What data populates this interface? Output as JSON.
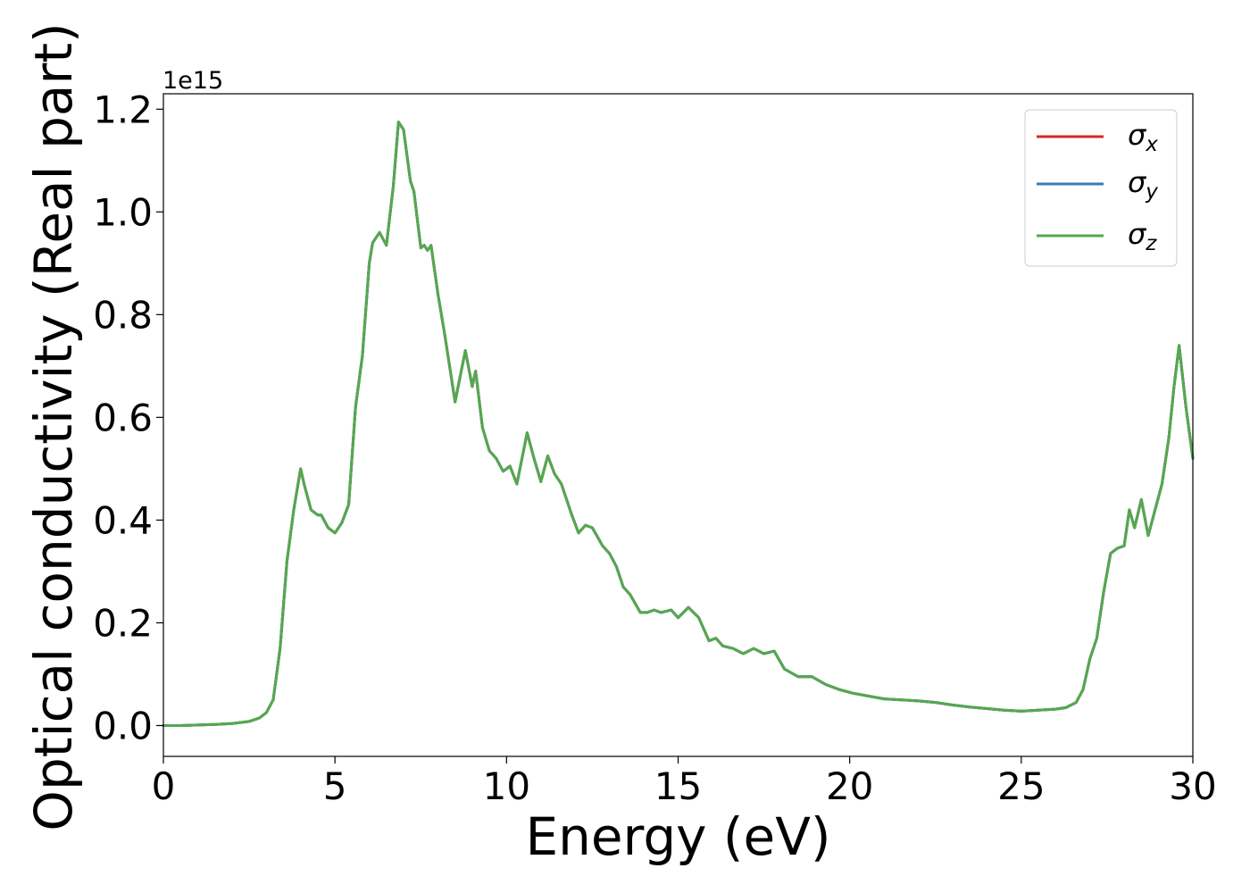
{
  "chart_data": {
    "type": "line",
    "xlabel": "Energy (eV)",
    "ylabel": "Optical conductivity (Real part)",
    "offset_text": "1e15",
    "xlim": [
      0,
      30
    ],
    "ylim": [
      -0.06,
      1.23
    ],
    "y_scale_factor": "1e15",
    "xticks": [
      0,
      5,
      10,
      15,
      20,
      25,
      30
    ],
    "xtick_labels": [
      "0",
      "5",
      "10",
      "15",
      "20",
      "25",
      "30"
    ],
    "yticks": [
      0.0,
      0.2,
      0.4,
      0.6,
      0.8,
      1.0,
      1.2
    ],
    "ytick_labels": [
      "0.0",
      "0.2",
      "0.4",
      "0.6",
      "0.8",
      "1.0",
      "1.2"
    ],
    "grid": false,
    "legend_position": "top-right",
    "series": [
      {
        "name": "σx",
        "label_base": "σ",
        "label_sub": "x",
        "color": "#d62728"
      },
      {
        "name": "σy",
        "label_base": "σ",
        "label_sub": "y",
        "color": "#3a7bb5"
      },
      {
        "name": "σz",
        "label_base": "σ",
        "label_sub": "z",
        "color": "#55a84f"
      }
    ],
    "x": [
      0,
      0.5,
      1,
      1.5,
      2,
      2.5,
      2.8,
      3.0,
      3.2,
      3.4,
      3.6,
      3.8,
      4.0,
      4.1,
      4.3,
      4.5,
      4.6,
      4.8,
      5.0,
      5.2,
      5.4,
      5.6,
      5.8,
      6.0,
      6.1,
      6.3,
      6.5,
      6.7,
      6.85,
      7.0,
      7.2,
      7.3,
      7.5,
      7.6,
      7.7,
      7.8,
      8.0,
      8.2,
      8.5,
      8.8,
      9.0,
      9.1,
      9.3,
      9.5,
      9.7,
      9.9,
      10.1,
      10.3,
      10.6,
      10.8,
      11.0,
      11.2,
      11.4,
      11.6,
      11.9,
      12.1,
      12.3,
      12.5,
      12.8,
      13.0,
      13.2,
      13.4,
      13.6,
      13.9,
      14.1,
      14.3,
      14.5,
      14.8,
      15.0,
      15.3,
      15.6,
      15.9,
      16.1,
      16.3,
      16.6,
      16.9,
      17.2,
      17.5,
      17.8,
      18.1,
      18.5,
      18.9,
      19.3,
      19.7,
      20.1,
      20.5,
      21.0,
      21.5,
      22.0,
      22.5,
      23.0,
      23.5,
      24.0,
      24.5,
      25.0,
      25.5,
      26.0,
      26.3,
      26.6,
      26.8,
      27.0,
      27.2,
      27.4,
      27.6,
      27.8,
      28.0,
      28.15,
      28.3,
      28.5,
      28.7,
      28.9,
      29.1,
      29.3,
      29.45,
      29.6,
      29.8,
      30.0
    ],
    "y": [
      0.0,
      0.0,
      0.001,
      0.002,
      0.004,
      0.008,
      0.015,
      0.025,
      0.05,
      0.15,
      0.32,
      0.42,
      0.5,
      0.47,
      0.42,
      0.41,
      0.41,
      0.385,
      0.375,
      0.395,
      0.43,
      0.62,
      0.72,
      0.9,
      0.94,
      0.96,
      0.935,
      1.05,
      1.175,
      1.16,
      1.06,
      1.04,
      0.93,
      0.935,
      0.925,
      0.935,
      0.84,
      0.76,
      0.63,
      0.73,
      0.66,
      0.69,
      0.58,
      0.535,
      0.52,
      0.495,
      0.505,
      0.47,
      0.57,
      0.52,
      0.475,
      0.525,
      0.49,
      0.47,
      0.41,
      0.375,
      0.39,
      0.385,
      0.35,
      0.335,
      0.31,
      0.27,
      0.255,
      0.22,
      0.22,
      0.225,
      0.22,
      0.225,
      0.21,
      0.23,
      0.21,
      0.165,
      0.17,
      0.155,
      0.15,
      0.14,
      0.15,
      0.14,
      0.145,
      0.11,
      0.095,
      0.095,
      0.08,
      0.07,
      0.063,
      0.058,
      0.052,
      0.05,
      0.048,
      0.045,
      0.04,
      0.036,
      0.033,
      0.03,
      0.028,
      0.03,
      0.032,
      0.035,
      0.045,
      0.07,
      0.13,
      0.17,
      0.26,
      0.335,
      0.345,
      0.35,
      0.42,
      0.385,
      0.44,
      0.37,
      0.42,
      0.47,
      0.56,
      0.66,
      0.74,
      0.62,
      0.52
    ]
  }
}
